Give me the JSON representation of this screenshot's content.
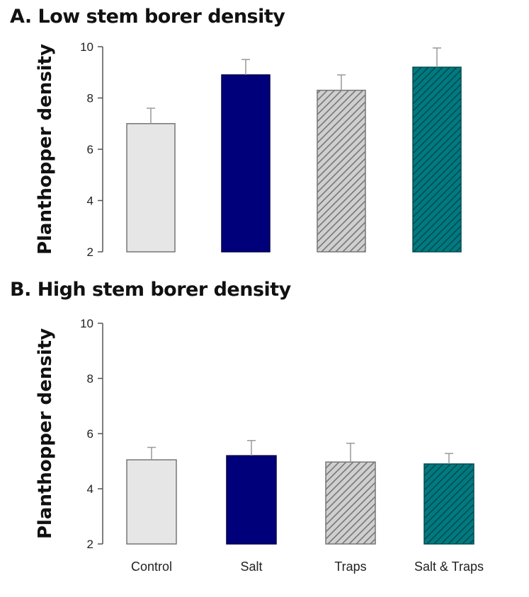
{
  "chart_data": [
    {
      "type": "bar",
      "title": "A. Low stem borer density",
      "ylabel": "Planthopper density",
      "xlabel": "",
      "ylim": [
        2,
        10
      ],
      "yticks": [
        2,
        4,
        6,
        8,
        10
      ],
      "categories": [
        "Control",
        "Salt",
        "Traps",
        "Salt & Traps"
      ],
      "show_category_labels": false,
      "values": [
        7.0,
        8.9,
        8.3,
        9.2
      ],
      "errors": [
        0.6,
        0.6,
        0.6,
        0.75
      ],
      "grid": false
    },
    {
      "type": "bar",
      "title": "B. High stem borer density",
      "ylabel": "Planthopper density",
      "xlabel": "",
      "ylim": [
        2,
        10
      ],
      "yticks": [
        2,
        4,
        6,
        8,
        10
      ],
      "categories": [
        "Control",
        "Salt",
        "Traps",
        "Salt & Traps"
      ],
      "show_category_labels": true,
      "values": [
        5.05,
        5.2,
        4.97,
        4.9
      ],
      "errors": [
        0.45,
        0.55,
        0.68,
        0.38
      ],
      "grid": false
    }
  ],
  "bar_styles": [
    {
      "name": "Control",
      "fill": "#e6e6e6",
      "pattern": "none",
      "stroke": "#777777"
    },
    {
      "name": "Salt",
      "fill": "#00007a",
      "pattern": "none",
      "stroke": "#00004a"
    },
    {
      "name": "Traps",
      "fill": "#cfcfcf",
      "pattern": "hatch",
      "hatch_color": "#777777",
      "stroke": "#777777"
    },
    {
      "name": "Salt & Traps",
      "fill": "#007a80",
      "pattern": "hatch",
      "hatch_color": "#004c50",
      "stroke": "#004c50"
    }
  ]
}
